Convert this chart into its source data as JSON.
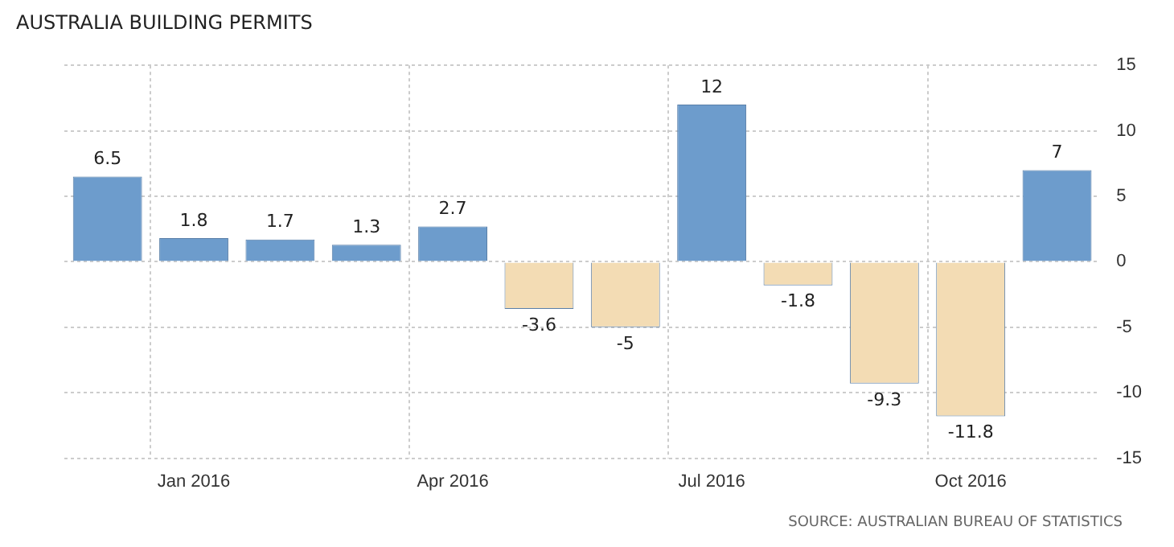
{
  "chart_data": {
    "type": "bar",
    "title": "AUSTRALIA BUILDING PERMITS",
    "categories": [
      null,
      "Jan 2016",
      null,
      null,
      "Apr 2016",
      null,
      null,
      "Jul 2016",
      null,
      null,
      "Oct 2016",
      null
    ],
    "values": [
      6.5,
      1.8,
      1.7,
      1.3,
      2.7,
      -3.6,
      -5,
      12,
      -1.8,
      -9.3,
      -11.8,
      7
    ],
    "colors": [
      "#6d9ccc",
      "#6d9ccc",
      "#6d9ccc",
      "#6d9ccc",
      "#6d9ccc",
      "#f3dcb4",
      "#f3dcb4",
      "#6d9ccc",
      "#f3dcb4",
      "#f3dcb4",
      "#f3dcb4",
      "#6d9ccc"
    ],
    "ylim": [
      -15,
      15
    ],
    "yticks": [
      -15,
      -10,
      -5,
      0,
      5,
      10,
      15
    ],
    "grid": true,
    "data_labels": true,
    "annotations": [
      "SOURCE: AUSTRALIAN BUREAU OF STATISTICS"
    ]
  }
}
